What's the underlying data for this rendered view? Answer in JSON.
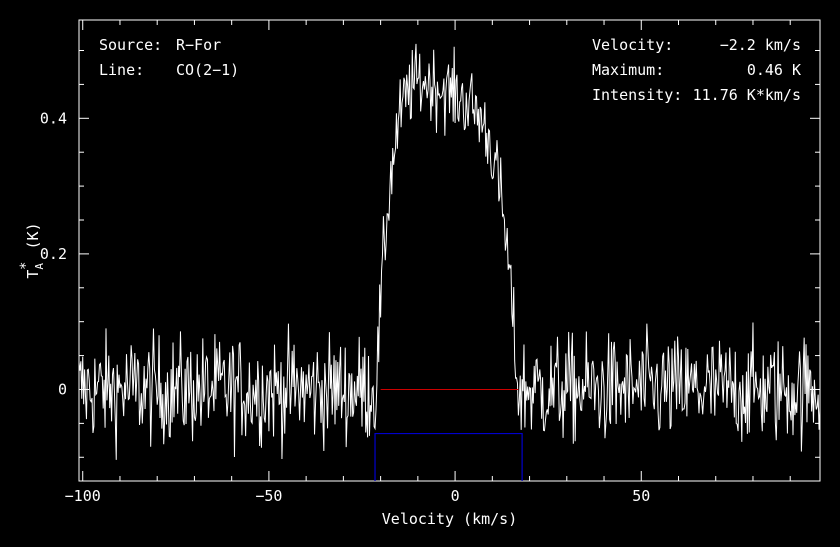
{
  "chart_data": {
    "type": "line",
    "xlabel": "Velocity (km/s)",
    "ylabel": "T_A^* (K)",
    "xlim": [
      -101,
      98
    ],
    "ylim": [
      -0.135,
      0.545
    ],
    "x_ticks": [
      -100,
      -50,
      0,
      50
    ],
    "x_tick_labels": [
      "−100",
      "−50",
      "0",
      "50"
    ],
    "y_ticks": [
      0,
      0.2,
      0.4
    ],
    "y_tick_labels": [
      "0",
      "0.2",
      "0.4"
    ],
    "grid": false,
    "info_left": [
      {
        "key": "Source:",
        "value": "R−For"
      },
      {
        "key": "Line:",
        "value": "CO(2−1)"
      }
    ],
    "info_right": [
      {
        "key": "Velocity:",
        "value": "−2.2 km/s"
      },
      {
        "key": "Maximum:",
        "value": "0.46 K"
      },
      {
        "key": "Intensity:",
        "value": "11.76 K*km/s"
      }
    ],
    "spectrum": {
      "x_min": -101,
      "x_max": 98,
      "step": 0.25,
      "noise_rms": 0.04,
      "line_center": -2.2,
      "line_halfwidth": 19,
      "line_peak": 0.44,
      "color": "#ffffff"
    },
    "baseline": {
      "x_start": -20,
      "x_end": 17,
      "y": 0,
      "color": "#cc0000"
    },
    "window_box": {
      "x_start": -21.5,
      "x_end": 18,
      "y_top": -0.065,
      "color": "#0000cc"
    }
  }
}
